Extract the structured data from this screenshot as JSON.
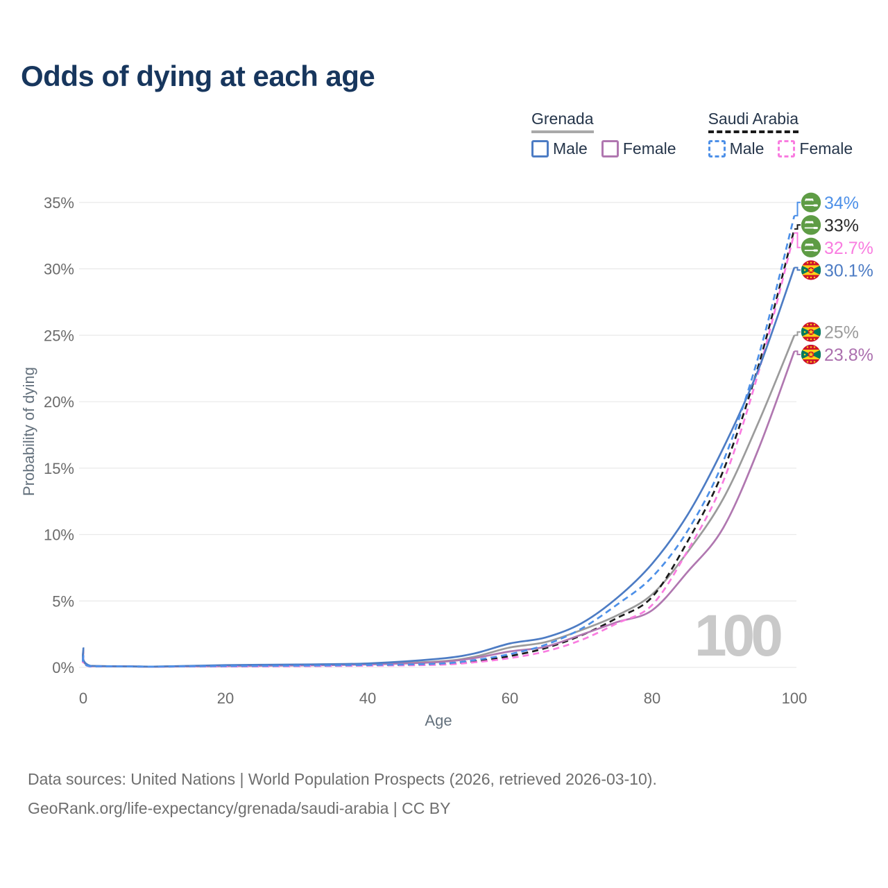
{
  "page": {
    "title": "Odds of dying at each age"
  },
  "legend": {
    "groups": [
      {
        "id": "grenada",
        "label": "Grenada",
        "line_style": "solid",
        "line_color": "#a9a9a9",
        "items": [
          {
            "id": "grenada-male",
            "label": "Male",
            "color": "#4d7cc4",
            "dashed": false
          },
          {
            "id": "grenada-female",
            "label": "Female",
            "color": "#b077b0",
            "dashed": false
          }
        ]
      },
      {
        "id": "saudi-arabia",
        "label": "Saudi Arabia",
        "line_style": "dashed",
        "line_color": "#1a1a1a",
        "items": [
          {
            "id": "saudi-male",
            "label": "Male",
            "color": "#4d90e8",
            "dashed": true
          },
          {
            "id": "saudi-female",
            "label": "Female",
            "color": "#f97ce0",
            "dashed": true
          }
        ]
      }
    ]
  },
  "chart_data": {
    "type": "line",
    "title": "Odds of dying at each age",
    "xlabel": "Age",
    "ylabel": "Probability of dying",
    "xlim": [
      0,
      100
    ],
    "ylim": [
      0,
      35
    ],
    "x_ticks": [
      0,
      20,
      40,
      60,
      80,
      100
    ],
    "y_ticks": [
      "0%",
      "5%",
      "10%",
      "15%",
      "20%",
      "25%",
      "30%",
      "35%"
    ],
    "grid": "horizontal",
    "legend_position": "top-right",
    "watermark": "100",
    "ages": [
      0,
      1,
      10,
      20,
      30,
      40,
      50,
      55,
      60,
      65,
      70,
      75,
      80,
      85,
      90,
      95,
      100
    ],
    "series": [
      {
        "id": "grenada-both",
        "name": "Grenada — Both sexes",
        "country": "Grenada",
        "sex": "both",
        "color": "#9b9b9b",
        "dashed": false,
        "flag": "grenada",
        "values": [
          1.35,
          0.11,
          0.06,
          0.14,
          0.18,
          0.26,
          0.45,
          0.8,
          1.5,
          1.9,
          2.8,
          3.9,
          5.5,
          8.7,
          12.7,
          18.5,
          25.0
        ],
        "end_label": "25%",
        "label_color": "#9b9b9b"
      },
      {
        "id": "saudi-both",
        "name": "Saudi Arabia — Both sexes",
        "country": "Saudi Arabia",
        "sex": "both",
        "color": "#1b1b1b",
        "dashed": true,
        "flag": "saudi",
        "values": [
          0.85,
          0.08,
          0.05,
          0.08,
          0.11,
          0.15,
          0.24,
          0.45,
          0.85,
          1.45,
          2.4,
          3.7,
          5.3,
          9.5,
          14.8,
          22.8,
          33.0
        ],
        "end_label": "33%",
        "label_color": "#2a2a2a"
      },
      {
        "id": "grenada-female",
        "name": "Grenada — Female",
        "country": "Grenada",
        "sex": "female",
        "color": "#b077b0",
        "dashed": false,
        "flag": "grenada",
        "values": [
          1.2,
          0.1,
          0.05,
          0.1,
          0.14,
          0.22,
          0.4,
          0.7,
          1.2,
          1.55,
          2.45,
          3.4,
          4.3,
          7.2,
          10.5,
          16.5,
          23.8
        ],
        "end_label": "23.8%",
        "label_color": "#ab6fae"
      },
      {
        "id": "saudi-female",
        "name": "Saudi Arabia — Female",
        "country": "Saudi Arabia",
        "sex": "female",
        "color": "#f97ce0",
        "dashed": true,
        "flag": "saudi",
        "values": [
          0.8,
          0.07,
          0.04,
          0.07,
          0.09,
          0.13,
          0.2,
          0.38,
          0.7,
          1.2,
          2.05,
          3.3,
          4.7,
          8.8,
          14.0,
          22.3,
          32.7
        ],
        "end_label": "32.7%",
        "label_color": "#f97ce0"
      },
      {
        "id": "grenada-male",
        "name": "Grenada — Male",
        "country": "Grenada",
        "sex": "male",
        "color": "#4d7cc4",
        "dashed": false,
        "flag": "grenada",
        "values": [
          1.5,
          0.12,
          0.06,
          0.17,
          0.22,
          0.3,
          0.65,
          1.05,
          1.8,
          2.25,
          3.3,
          5.2,
          7.8,
          11.5,
          16.5,
          22.5,
          30.1
        ],
        "end_label": "30.1%",
        "label_color": "#4d7cc4"
      },
      {
        "id": "saudi-male",
        "name": "Saudi Arabia — Male",
        "country": "Saudi Arabia",
        "sex": "male",
        "color": "#4d90e8",
        "dashed": true,
        "flag": "saudi",
        "values": [
          0.9,
          0.08,
          0.05,
          0.1,
          0.13,
          0.18,
          0.28,
          0.55,
          1.0,
          1.7,
          2.9,
          4.7,
          6.8,
          10.3,
          15.5,
          23.5,
          34.0
        ],
        "end_label": "34%",
        "label_color": "#4d90e8"
      }
    ]
  },
  "footer": {
    "line1": "Data sources: United Nations | World Population Prospects (2026, retrieved 2026-03-10).",
    "line2": "GeoRank.org/life-expectancy/grenada/saudi-arabia | CC BY"
  }
}
